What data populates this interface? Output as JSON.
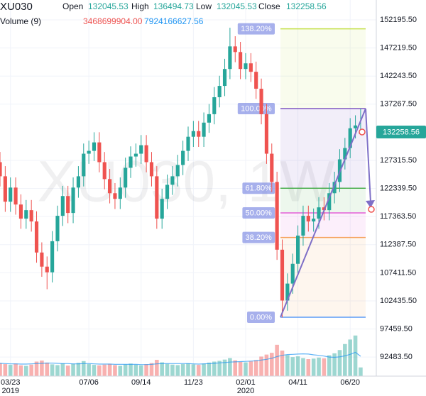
{
  "header": {
    "symbol": "XU030",
    "open_label": "Open",
    "open": "132045.53",
    "high_label": "High",
    "high": "136494.73",
    "low_label": "Low",
    "low": "132045.53",
    "close_label": "Close",
    "close": "132258.56",
    "volume_label": "Volume (9)",
    "volume": "3468699904.00",
    "volume_ma": "7924166627.56"
  },
  "chart_data": {
    "type": "candlestick",
    "watermark": "XU030, 1W",
    "up_color": "#26a69a",
    "down_color": "#ef5350",
    "ma_color": "#2196f3",
    "xlim": [
      0,
      72
    ],
    "ylim": [
      89112,
      155714
    ],
    "volume_ylim": [
      0,
      150000000000
    ],
    "grid": true,
    "xticks": [
      {
        "value": 2,
        "label": "03/23"
      },
      {
        "value": 17,
        "label": "07/06"
      },
      {
        "value": 27,
        "label": "09/14"
      },
      {
        "value": 37,
        "label": "11/23"
      },
      {
        "value": 47,
        "label": "02/01"
      },
      {
        "value": 57,
        "label": "04/11"
      },
      {
        "value": 67,
        "label": "06/20"
      }
    ],
    "xyears": [
      {
        "value": 2,
        "label": "2019"
      },
      {
        "value": 47,
        "label": "2020"
      }
    ],
    "yticks": [
      {
        "value": 152195.5,
        "label": "152195.50"
      },
      {
        "value": 147219.5,
        "label": "147219.50"
      },
      {
        "value": 142243.5,
        "label": "142243.50"
      },
      {
        "value": 137267.5,
        "label": "137267.50"
      },
      {
        "value": 127315.5,
        "label": "127315.50"
      },
      {
        "value": 122339.5,
        "label": "122339.50"
      },
      {
        "value": 117363.5,
        "label": "117363.50"
      },
      {
        "value": 112387.5,
        "label": "112387.50"
      },
      {
        "value": 107411.5,
        "label": "107411.50"
      },
      {
        "value": 102435.5,
        "label": "102435.50"
      },
      {
        "value": 97459.5,
        "label": "97459.50"
      },
      {
        "value": 92483.5,
        "label": "92483.50"
      }
    ],
    "open": [
      127000,
      124500,
      120000,
      122500,
      119500,
      117000,
      118500,
      116500,
      111000,
      108500,
      107500,
      113000,
      117500,
      121000,
      118000,
      122500,
      124500,
      128500,
      129000,
      130500,
      127000,
      124000,
      121500,
      120500,
      122500,
      126000,
      128000,
      128500,
      130000,
      127000,
      124500,
      117000,
      120500,
      123000,
      124500,
      126500,
      129000,
      131500,
      132500,
      131500,
      134000,
      135500,
      138500,
      140500,
      143500,
      147500,
      146500,
      143500,
      144500,
      143000,
      140000,
      135500,
      128500,
      123500,
      111500,
      102500,
      105500,
      109000,
      114000,
      117500,
      116500,
      117000,
      119000,
      118500,
      121500,
      123500,
      127500,
      129500,
      133000,
      132045.53
    ],
    "high": [
      128800,
      126300,
      124300,
      124300,
      121300,
      120300,
      120300,
      118300,
      112800,
      110300,
      114800,
      119300,
      122800,
      122800,
      124300,
      126300,
      130300,
      130800,
      132300,
      132300,
      128800,
      125800,
      123300,
      124300,
      127800,
      129800,
      130300,
      131800,
      131800,
      128800,
      126300,
      122300,
      124800,
      126300,
      128300,
      130800,
      133300,
      134300,
      134300,
      135800,
      137300,
      140300,
      142300,
      145300,
      150800,
      149300,
      148300,
      146300,
      146300,
      144800,
      141800,
      137300,
      130300,
      125300,
      113300,
      107300,
      110800,
      115800,
      119300,
      119300,
      118800,
      120800,
      120800,
      123300,
      125300,
      129300,
      131300,
      134800,
      135300,
      136494.73
    ],
    "low": [
      122700,
      118200,
      118200,
      117700,
      115200,
      115200,
      114700,
      109200,
      106700,
      104500,
      105700,
      111200,
      115700,
      116200,
      116200,
      120700,
      122700,
      126700,
      127200,
      125200,
      122200,
      119700,
      118700,
      118700,
      120700,
      124200,
      126200,
      126700,
      125200,
      122700,
      115200,
      115200,
      118700,
      121200,
      122700,
      124700,
      127200,
      129700,
      129700,
      129700,
      132200,
      133700,
      136700,
      138700,
      141700,
      144700,
      141700,
      141700,
      141200,
      138200,
      133700,
      126700,
      121700,
      109700,
      99500,
      100700,
      103700,
      107200,
      112200,
      114700,
      114700,
      115200,
      116700,
      116700,
      119700,
      121700,
      125700,
      127700,
      131200,
      132045.53
    ],
    "close": [
      124500,
      120000,
      122500,
      119500,
      117000,
      118500,
      116500,
      111000,
      108500,
      107500,
      113000,
      117500,
      121000,
      118000,
      122500,
      124500,
      128500,
      129000,
      130500,
      127000,
      124000,
      121500,
      120500,
      122500,
      126000,
      128000,
      128500,
      130000,
      127000,
      124500,
      117000,
      120500,
      123000,
      124500,
      126500,
      129000,
      131500,
      132500,
      131500,
      134000,
      135500,
      138500,
      140500,
      143500,
      147500,
      146500,
      143500,
      144500,
      143000,
      140000,
      135500,
      128500,
      123500,
      111500,
      102500,
      105500,
      109000,
      114000,
      117500,
      116500,
      117000,
      119000,
      118500,
      121500,
      123500,
      127500,
      129500,
      133000,
      133500,
      132258.56
    ],
    "volume": [
      5200000000,
      4800000000,
      4500000000,
      5000000000,
      4300000000,
      4100000000,
      4600000000,
      5800000000,
      6200000000,
      5400000000,
      4700000000,
      4400000000,
      5100000000,
      4200000000,
      4900000000,
      5300000000,
      6000000000,
      4800000000,
      4500000000,
      4300000000,
      4600000000,
      4900000000,
      4400000000,
      4100000000,
      4700000000,
      5000000000,
      4600000000,
      4300000000,
      4800000000,
      5200000000,
      6500000000,
      5500000000,
      4900000000,
      4600000000,
      4400000000,
      4800000000,
      5100000000,
      4700000000,
      4500000000,
      5000000000,
      5400000000,
      5800000000,
      6100000000,
      6600000000,
      7200000000,
      6300000000,
      5700000000,
      5500000000,
      5900000000,
      6400000000,
      7800000000,
      8600000000,
      9300000000,
      12500000000,
      10200000000,
      8400000000,
      7600000000,
      7900000000,
      7200000000,
      6800000000,
      7000000000,
      7400000000,
      7100000000,
      8300000000,
      9100000000,
      10400000000,
      12800000000,
      14600000000,
      16200000000,
      3468699904
    ],
    "volume_ma": [
      5100000000,
      5000000000,
      4900000000,
      4900000000,
      4800000000,
      4800000000,
      4900000000,
      5000000000,
      5100000000,
      5200000000,
      5200000000,
      5100000000,
      5000000000,
      5000000000,
      4900000000,
      4900000000,
      5000000000,
      5000000000,
      4900000000,
      4800000000,
      4800000000,
      4800000000,
      4700000000,
      4700000000,
      4700000000,
      4700000000,
      4700000000,
      4600000000,
      4600000000,
      4700000000,
      4900000000,
      5000000000,
      5000000000,
      5000000000,
      5000000000,
      5000000000,
      5000000000,
      4900000000,
      4800000000,
      4900000000,
      5000000000,
      5100000000,
      5300000000,
      5400000000,
      5600000000,
      5700000000,
      5800000000,
      5900000000,
      6000000000,
      6100000000,
      6400000000,
      6700000000,
      7100000000,
      7800000000,
      8300000000,
      8600000000,
      8700000000,
      8800000000,
      8900000000,
      8800000000,
      8500000000,
      8300000000,
      8000000000,
      7600000000,
      7500000000,
      7700000000,
      8100000000,
      8700000000,
      9500000000,
      7924166627.56
    ],
    "fib": {
      "low": 99544,
      "high": 136494.73,
      "levels": [
        {
          "value": 0,
          "label": "0.00%",
          "color": "#5b9cf6"
        },
        {
          "value": 38.2,
          "label": "38.20%",
          "color": "#f5a25c"
        },
        {
          "value": 50,
          "label": "50.00%",
          "color": "#e45fd8"
        },
        {
          "value": 61.8,
          "label": "61.80%",
          "color": "#4caf50"
        },
        {
          "value": 100,
          "label": "100.00%",
          "color": "#7e57c2"
        },
        {
          "value": 138.2,
          "label": "138.20%",
          "color": "#c5e04a"
        }
      ]
    }
  }
}
